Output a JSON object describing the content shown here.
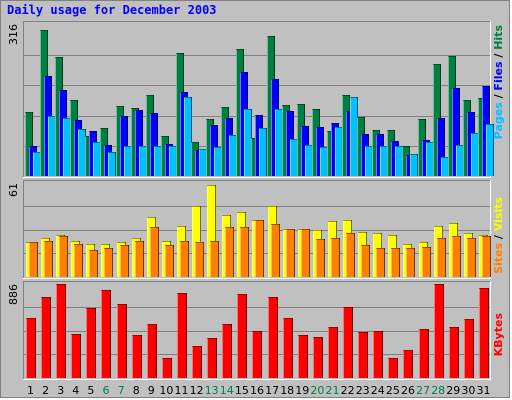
{
  "title": "Daily usage for December 2003",
  "colors": {
    "hits": "#008040",
    "files": "#0000ff",
    "pages": "#00c0ff",
    "visits": "#ffff00",
    "sites": "#ff8000",
    "kbytes": "#ff0000",
    "title": "#0000ff",
    "weekend_label": "#008040",
    "weekday_label": "#000000"
  },
  "chart_data": [
    {
      "type": "bar",
      "name": "hits-files-pages",
      "categories": [
        "1",
        "2",
        "3",
        "4",
        "5",
        "6",
        "7",
        "8",
        "9",
        "10",
        "11",
        "12",
        "13",
        "14",
        "15",
        "16",
        "17",
        "18",
        "19",
        "20",
        "21",
        "22",
        "23",
        "24",
        "25",
        "26",
        "27",
        "28",
        "29",
        "30",
        "31"
      ],
      "weekend_days": [
        "6",
        "7",
        "13",
        "14",
        "20",
        "21",
        "27",
        "28"
      ],
      "ymax_label": "316",
      "ylim": [
        0,
        316
      ],
      "legend": [
        "Pages",
        "Files",
        "Hits"
      ],
      "legend_separator": " / ",
      "series": [
        {
          "name": "Hits",
          "values": [
            138,
            316,
            258,
            164,
            86,
            104,
            152,
            147,
            175,
            87,
            266,
            73,
            123,
            150,
            275,
            82,
            302,
            153,
            155,
            144,
            97,
            175,
            128,
            100,
            100,
            65,
            124,
            243,
            260,
            165,
            169
          ]
        },
        {
          "name": "Files",
          "values": [
            64,
            216,
            187,
            121,
            98,
            67,
            130,
            142,
            137,
            70,
            182,
            56,
            111,
            125,
            225,
            131,
            210,
            141,
            109,
            106,
            115,
            141,
            91,
            91,
            75,
            45,
            77,
            125,
            190,
            138,
            194
          ]
        },
        {
          "name": "Pages",
          "values": [
            53,
            129,
            125,
            102,
            73,
            51,
            65,
            64,
            65,
            64,
            170,
            58,
            63,
            88,
            144,
            103,
            144,
            81,
            68,
            63,
            107,
            170,
            65,
            64,
            66,
            48,
            73,
            42,
            67,
            92,
            113
          ]
        }
      ]
    },
    {
      "type": "bar",
      "name": "visits-sites",
      "categories": [
        "1",
        "2",
        "3",
        "4",
        "5",
        "6",
        "7",
        "8",
        "9",
        "10",
        "11",
        "12",
        "13",
        "14",
        "15",
        "16",
        "17",
        "18",
        "19",
        "20",
        "21",
        "22",
        "23",
        "24",
        "25",
        "26",
        "27",
        "28",
        "29",
        "30",
        "31"
      ],
      "ymax_label": "61",
      "ylim": [
        0,
        61
      ],
      "legend": [
        "Sites",
        "Visits"
      ],
      "legend_separator": " / ",
      "series": [
        {
          "name": "Visits",
          "values": [
            23,
            26,
            28,
            24,
            22,
            22,
            23,
            26,
            40,
            24,
            34,
            47,
            61,
            41,
            43,
            38,
            47,
            32,
            32,
            31,
            37,
            38,
            30,
            29,
            28,
            22,
            23,
            34,
            36,
            29,
            28
          ]
        },
        {
          "name": "Sites",
          "values": [
            23,
            24,
            27,
            22,
            18,
            19,
            21,
            24,
            33,
            21,
            24,
            23,
            24,
            33,
            33,
            38,
            35,
            32,
            32,
            25,
            26,
            29,
            21,
            19,
            19,
            19,
            20,
            26,
            27,
            26,
            27
          ]
        }
      ]
    },
    {
      "type": "bar",
      "name": "kbytes",
      "categories": [
        "1",
        "2",
        "3",
        "4",
        "5",
        "6",
        "7",
        "8",
        "9",
        "10",
        "11",
        "12",
        "13",
        "14",
        "15",
        "16",
        "17",
        "18",
        "19",
        "20",
        "21",
        "22",
        "23",
        "24",
        "25",
        "26",
        "27",
        "28",
        "29",
        "30",
        "31"
      ],
      "ymax_label": "886",
      "ylim": [
        0,
        886
      ],
      "legend": [
        "KBytes"
      ],
      "series": [
        {
          "name": "KBytes",
          "values": [
            563,
            762,
            886,
            415,
            663,
            830,
            697,
            407,
            507,
            186,
            797,
            301,
            379,
            505,
            788,
            447,
            760,
            564,
            403,
            390,
            484,
            669,
            437,
            445,
            190,
            264,
            465,
            886,
            478,
            559,
            847
          ]
        }
      ]
    }
  ]
}
